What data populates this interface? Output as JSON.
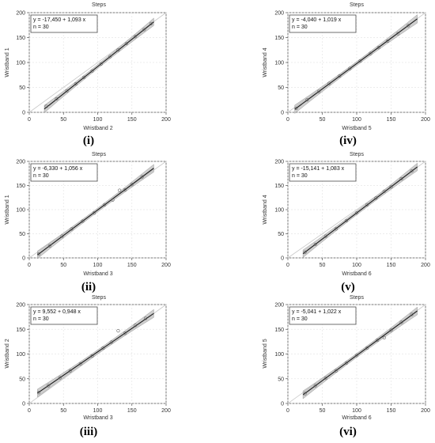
{
  "chart_data": [
    {
      "panel_label": "(i)",
      "type": "scatter",
      "title": "Steps",
      "xlabel": "Wristband 2",
      "ylabel": "Wristband 1",
      "xlim": [
        0,
        200
      ],
      "ylim": [
        0,
        200
      ],
      "xticks": [
        "0",
        "50",
        "100",
        "150",
        "200"
      ],
      "yticks": [
        "0",
        "50",
        "100",
        "150",
        "200"
      ],
      "grid": true,
      "legend_lines": [
        "y = -17,450 + 1,093 x",
        "n = 30"
      ],
      "fit": {
        "intercept": -17.45,
        "slope": 1.093,
        "x_range": [
          22,
          182
        ]
      },
      "identity_line": true,
      "points": [
        [
          25,
          12
        ],
        [
          40,
          27
        ],
        [
          55,
          43
        ],
        [
          68,
          57
        ],
        [
          80,
          70
        ],
        [
          92,
          83
        ],
        [
          105,
          97
        ],
        [
          118,
          112
        ],
        [
          130,
          125
        ],
        [
          142,
          138
        ],
        [
          155,
          152
        ],
        [
          168,
          166
        ],
        [
          178,
          178
        ]
      ]
    },
    {
      "panel_label": "(ii)",
      "type": "scatter",
      "title": "Steps",
      "xlabel": "Wristband 3",
      "ylabel": "Wristband 1",
      "xlim": [
        0,
        200
      ],
      "ylim": [
        0,
        200
      ],
      "xticks": [
        "0",
        "50",
        "100",
        "150",
        "200"
      ],
      "yticks": [
        "0",
        "50",
        "100",
        "150",
        "200"
      ],
      "grid": true,
      "legend_lines": [
        "y = -6,330 + 1,056 x",
        "n = 30"
      ],
      "fit": {
        "intercept": -6.33,
        "slope": 1.056,
        "x_range": [
          12,
          182
        ]
      },
      "identity_line": true,
      "points": [
        [
          14,
          8
        ],
        [
          30,
          25
        ],
        [
          48,
          45
        ],
        [
          62,
          60
        ],
        [
          78,
          76
        ],
        [
          95,
          93
        ],
        [
          110,
          110
        ],
        [
          122,
          120
        ],
        [
          132,
          140
        ],
        [
          140,
          141
        ],
        [
          150,
          152
        ],
        [
          165,
          168
        ]
      ]
    },
    {
      "panel_label": "(iii)",
      "type": "scatter",
      "title": "Steps",
      "xlabel": "Wristband 3",
      "ylabel": "Wristband 2",
      "xlim": [
        0,
        200
      ],
      "ylim": [
        0,
        200
      ],
      "xticks": [
        "0",
        "50",
        "100",
        "150",
        "200"
      ],
      "yticks": [
        "0",
        "50",
        "100",
        "150",
        "200"
      ],
      "grid": true,
      "legend_lines": [
        "y = 9,552 + 0,948 x",
        "n = 30"
      ],
      "fit": {
        "intercept": 9.552,
        "slope": 0.948,
        "x_range": [
          12,
          182
        ]
      },
      "identity_line": true,
      "points": [
        [
          14,
          22
        ],
        [
          28,
          36
        ],
        [
          45,
          52
        ],
        [
          60,
          66
        ],
        [
          75,
          80
        ],
        [
          92,
          96
        ],
        [
          108,
          112
        ],
        [
          120,
          124
        ],
        [
          130,
          147
        ],
        [
          140,
          142
        ],
        [
          155,
          158
        ],
        [
          170,
          172
        ]
      ]
    },
    {
      "panel_label": "(iv)",
      "type": "scatter",
      "title": "Steps",
      "xlabel": "Wristband 5",
      "ylabel": "Wristband 4",
      "xlim": [
        0,
        200
      ],
      "ylim": [
        0,
        200
      ],
      "xticks": [
        "0",
        "50",
        "100",
        "150",
        "200"
      ],
      "yticks": [
        "0",
        "50",
        "100",
        "150",
        "200"
      ],
      "grid": true,
      "legend_lines": [
        "y = -4,040 + 1,019 x",
        "n = 30"
      ],
      "fit": {
        "intercept": -4.04,
        "slope": 1.019,
        "x_range": [
          10,
          188
        ]
      },
      "identity_line": true,
      "points": [
        [
          12,
          8
        ],
        [
          28,
          25
        ],
        [
          45,
          42
        ],
        [
          60,
          58
        ],
        [
          75,
          73
        ],
        [
          90,
          88
        ],
        [
          105,
          103
        ],
        [
          120,
          118
        ],
        [
          132,
          130
        ],
        [
          145,
          143
        ],
        [
          160,
          158
        ],
        [
          175,
          174
        ]
      ]
    },
    {
      "panel_label": "(v)",
      "type": "scatter",
      "title": "Steps",
      "xlabel": "Wristband 6",
      "ylabel": "Wristband 4",
      "xlim": [
        0,
        200
      ],
      "ylim": [
        0,
        200
      ],
      "xticks": [
        "0",
        "50",
        "100",
        "150",
        "200"
      ],
      "yticks": [
        "0",
        "50",
        "100",
        "150",
        "200"
      ],
      "grid": true,
      "legend_lines": [
        "y = -15,141 + 1,083 x",
        "n = 30"
      ],
      "fit": {
        "intercept": -15.141,
        "slope": 1.083,
        "x_range": [
          22,
          188
        ]
      },
      "identity_line": true,
      "points": [
        [
          25,
          12
        ],
        [
          40,
          28
        ],
        [
          55,
          45
        ],
        [
          70,
          60
        ],
        [
          85,
          77
        ],
        [
          100,
          93
        ],
        [
          115,
          110
        ],
        [
          128,
          124
        ],
        [
          140,
          138
        ],
        [
          150,
          147
        ],
        [
          165,
          164
        ],
        [
          180,
          180
        ]
      ]
    },
    {
      "panel_label": "(vi)",
      "type": "scatter",
      "title": "Steps",
      "xlabel": "Wristband 6",
      "ylabel": "Wristband 5",
      "xlim": [
        0,
        200
      ],
      "ylim": [
        0,
        200
      ],
      "xticks": [
        "0",
        "50",
        "100",
        "150",
        "200"
      ],
      "yticks": [
        "0",
        "50",
        "100",
        "150",
        "200"
      ],
      "grid": true,
      "legend_lines": [
        "y = -5,041 + 1,022 x",
        "n = 30"
      ],
      "fit": {
        "intercept": -5.041,
        "slope": 1.022,
        "x_range": [
          22,
          188
        ]
      },
      "identity_line": true,
      "points": [
        [
          25,
          20
        ],
        [
          40,
          36
        ],
        [
          55,
          51
        ],
        [
          70,
          66
        ],
        [
          85,
          82
        ],
        [
          100,
          97
        ],
        [
          115,
          112
        ],
        [
          130,
          128
        ],
        [
          140,
          133
        ],
        [
          150,
          148
        ],
        [
          165,
          164
        ],
        [
          180,
          180
        ]
      ]
    }
  ]
}
